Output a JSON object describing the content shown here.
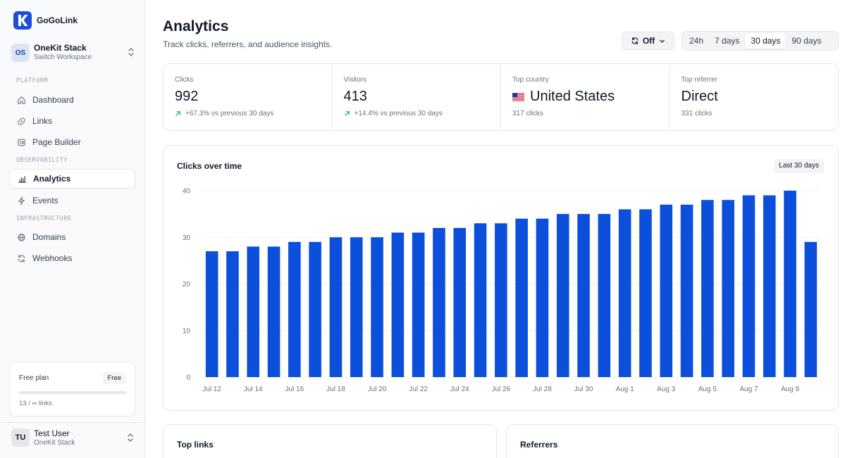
{
  "brand": {
    "name": "GoGoLink"
  },
  "workspace": {
    "initials": "OS",
    "name": "OneKit Stack",
    "subtitle": "Switch Workspace"
  },
  "sidebar": {
    "sections": {
      "platform": "PLATFORM",
      "observability": "OBSERVABILITY",
      "infrastructure": "INFRASTRUCTURE"
    },
    "items": [
      {
        "label": "Dashboard",
        "icon": "home-icon"
      },
      {
        "label": "Links",
        "icon": "link-icon"
      },
      {
        "label": "Page Builder",
        "icon": "layout-icon"
      },
      {
        "label": "Analytics",
        "icon": "bar-chart-icon",
        "active": true
      },
      {
        "label": "Events",
        "icon": "bolt-icon"
      },
      {
        "label": "Domains",
        "icon": "globe-icon"
      },
      {
        "label": "Webhooks",
        "icon": "refresh-icon"
      }
    ]
  },
  "plan": {
    "title": "Free plan",
    "badge": "Free",
    "usage": "13 / ∞ links",
    "used_fraction": 0
  },
  "user": {
    "initials": "TU",
    "name": "Test User",
    "subtitle": "OneKit Stack"
  },
  "header": {
    "title": "Analytics",
    "subtitle": "Track clicks, referrers, and audience insights."
  },
  "refresh": {
    "label": "Off"
  },
  "ranges": [
    {
      "label": "24h"
    },
    {
      "label": "7 days"
    },
    {
      "label": "30 days",
      "active": true
    },
    {
      "label": "90 days"
    }
  ],
  "stats": [
    {
      "label": "Clicks",
      "value": "992",
      "sub": "+67.3% vs previous 30 days"
    },
    {
      "label": "Visitors",
      "value": "413",
      "sub": "+14.4% vs previous 30 days"
    },
    {
      "label": "Top country",
      "value": "United States",
      "sub": "317 clicks"
    },
    {
      "label": "Top referrer",
      "value": "Direct",
      "sub": "331 clicks"
    }
  ],
  "colors": {
    "accent": "#0b4fdb",
    "positive": "#10b981",
    "brand": "#1d4ed8"
  },
  "chart": {
    "title": "Clicks over time",
    "badge": "Last 30 days"
  },
  "chart_data": {
    "type": "bar",
    "title": "Clicks over time",
    "xlabel": "",
    "ylabel": "",
    "ylim": [
      0,
      40
    ],
    "yticks": [
      0,
      10,
      20,
      30,
      40
    ],
    "grid": true,
    "categories": [
      "Jul 12",
      "Jul 13",
      "Jul 14",
      "Jul 15",
      "Jul 16",
      "Jul 17",
      "Jul 18",
      "Jul 19",
      "Jul 20",
      "Jul 21",
      "Jul 22",
      "Jul 23",
      "Jul 24",
      "Jul 25",
      "Jul 26",
      "Jul 27",
      "Jul 28",
      "Jul 29",
      "Jul 30",
      "Jul 31",
      "Aug 1",
      "Aug 2",
      "Aug 3",
      "Aug 4",
      "Aug 5",
      "Aug 6",
      "Aug 7",
      "Aug 8",
      "Aug 9",
      "Aug 10"
    ],
    "tick_labels": [
      "Jul 12",
      "Jul 14",
      "Jul 16",
      "Jul 18",
      "Jul 20",
      "Jul 22",
      "Jul 24",
      "Jul 26",
      "Jul 28",
      "Jul 30",
      "Aug 1",
      "Aug 3",
      "Aug 5",
      "Aug 7",
      "Aug 9"
    ],
    "values": [
      27,
      27,
      28,
      28,
      29,
      29,
      30,
      30,
      30,
      31,
      31,
      32,
      32,
      33,
      33,
      34,
      34,
      35,
      35,
      35,
      36,
      36,
      37,
      37,
      38,
      38,
      39,
      39,
      40,
      29
    ]
  },
  "panels": {
    "top_links": "Top links",
    "referrers": "Referrers"
  }
}
